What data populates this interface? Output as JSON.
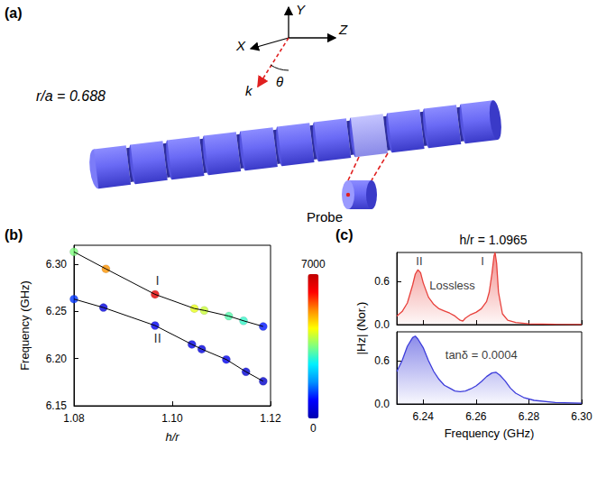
{
  "diagram": {
    "panel_label": "(a)",
    "ratio_label": "r/a = 0.688",
    "probe_label": "Probe",
    "axis_labels": [
      "X",
      "Y",
      "Z"
    ],
    "wave_vector": "k",
    "angle": "θ"
  },
  "chart_data": [
    {
      "type": "scatter",
      "panel_label": "(b)",
      "xlabel": "h/r",
      "ylabel": "Frequency (GHz)",
      "xlim": [
        1.08,
        1.12
      ],
      "xticks": [
        1.08,
        {
          "value": 1.1,
          "label": "1.10"
        },
        1.12
      ],
      "ylim": [
        6.15,
        6.32
      ],
      "yticks": [
        6.15,
        {
          "value": 6.2,
          "label": "6.20"
        },
        6.25,
        {
          "value": 6.3,
          "label": "6.30"
        }
      ],
      "grid": false,
      "marker": "circle",
      "line_style": "solid",
      "colorbar": {
        "range": [
          0,
          7000
        ],
        "ticks": [
          0,
          7000
        ]
      },
      "series": [
        {
          "name": "I",
          "color": "#000000",
          "label_pos": [
            1.097,
            6.283
          ],
          "x": [
            1.08,
            1.0865,
            1.0965,
            1.1045,
            1.1065,
            1.1115,
            1.1145,
            1.1185
          ],
          "values": [
            6.313,
            6.295,
            6.268,
            6.253,
            6.251,
            6.245,
            6.24,
            6.234
          ],
          "q": [
            3500,
            5200,
            6500,
            4200,
            4000,
            3200,
            3000,
            1000
          ]
        },
        {
          "name": "II",
          "color": "#000000",
          "label_pos": [
            1.097,
            6.222
          ],
          "x": [
            1.08,
            1.086,
            1.0965,
            1.104,
            1.106,
            1.111,
            1.115,
            1.1185
          ],
          "values": [
            6.263,
            6.254,
            6.235,
            6.215,
            6.21,
            6.199,
            6.186,
            6.176
          ],
          "q": [
            1200,
            500,
            700,
            600,
            500,
            700,
            400,
            300
          ]
        }
      ]
    },
    {
      "type": "area",
      "panel_label": "(c)",
      "title": "h/r = 1.0965",
      "ylabel": "|Hz| (Nor.)",
      "xlim": [
        6.23,
        6.3
      ],
      "xticks": [
        6.24,
        6.26,
        6.28,
        {
          "value": 6.3,
          "label": "6.30"
        }
      ],
      "ylim": [
        0,
        1
      ],
      "yticks": [
        {
          "value": 0,
          "label": "0.0"
        },
        0.6
      ],
      "grid": false,
      "tick_labels": "y",
      "series": [
        {
          "color": "#e8413c",
          "x": [
            6.23,
            6.232,
            6.234,
            6.236,
            6.237,
            6.238,
            6.239,
            6.24,
            6.242,
            6.244,
            6.246,
            6.248,
            6.25,
            6.252,
            6.254,
            6.255,
            6.256,
            6.258,
            6.26,
            6.262,
            6.264,
            6.265,
            6.266,
            6.2668,
            6.2672,
            6.2678,
            6.2685,
            6.27,
            6.272,
            6.275,
            6.28,
            6.29,
            6.3
          ],
          "values": [
            0.12,
            0.18,
            0.3,
            0.55,
            0.7,
            0.76,
            0.72,
            0.58,
            0.38,
            0.28,
            0.22,
            0.19,
            0.16,
            0.12,
            0.06,
            0.05,
            0.09,
            0.14,
            0.17,
            0.22,
            0.32,
            0.45,
            0.7,
            0.95,
            1.0,
            0.85,
            0.45,
            0.15,
            0.06,
            0.03,
            0.01,
            0.005,
            0.002
          ]
        }
      ],
      "annotations": [
        {
          "text": "II",
          "x": 6.2385,
          "y": 0.88
        },
        {
          "text": "I",
          "x": 6.2625,
          "y": 0.88
        },
        {
          "text": "Lossless",
          "x": 6.251,
          "y": 0.55
        }
      ]
    },
    {
      "type": "area",
      "xlabel": "Frequency (GHz)",
      "xlim": [
        6.23,
        6.3
      ],
      "xticks": [
        6.24,
        6.26,
        6.28,
        {
          "value": 6.3,
          "label": "6.30"
        }
      ],
      "ylim": [
        0,
        1
      ],
      "yticks": [
        {
          "value": 0,
          "label": "0.0"
        },
        0.6
      ],
      "grid": false,
      "series": [
        {
          "color": "#3d3ddb",
          "x": [
            6.23,
            6.232,
            6.234,
            6.236,
            6.237,
            6.238,
            6.24,
            6.242,
            6.244,
            6.246,
            6.248,
            6.25,
            6.252,
            6.254,
            6.256,
            6.258,
            6.26,
            6.262,
            6.264,
            6.266,
            6.2675,
            6.269,
            6.271,
            6.273,
            6.275,
            6.278,
            6.282,
            6.29,
            6.3
          ],
          "values": [
            0.45,
            0.6,
            0.8,
            0.92,
            0.94,
            0.9,
            0.78,
            0.6,
            0.45,
            0.34,
            0.26,
            0.22,
            0.18,
            0.17,
            0.18,
            0.21,
            0.25,
            0.31,
            0.38,
            0.43,
            0.44,
            0.4,
            0.32,
            0.22,
            0.15,
            0.09,
            0.05,
            0.02,
            0.01
          ]
        }
      ],
      "annotations": [
        {
          "text": "tanδ = 0.0004",
          "x": 6.262,
          "y": 0.68
        }
      ]
    }
  ]
}
